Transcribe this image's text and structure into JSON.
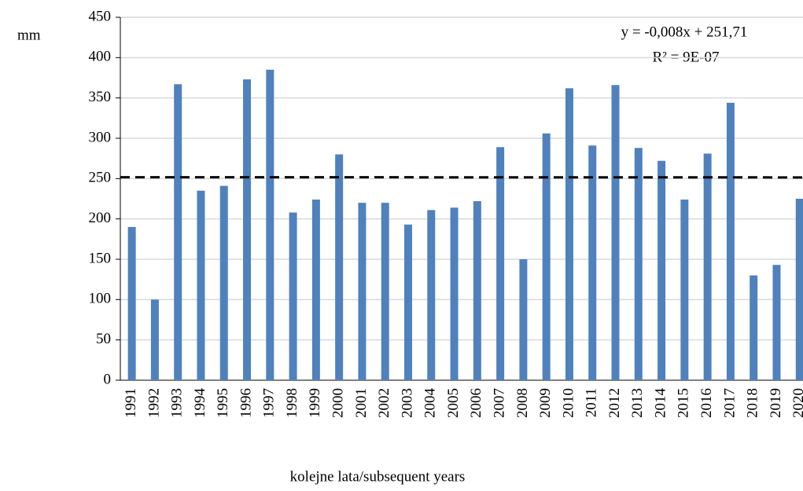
{
  "chart_data": {
    "type": "bar",
    "y_label": "mm",
    "x_label": "kolejne lata/subsequent years",
    "annotations": [
      "y = -0,008x + 251,71",
      "R² = 9E-07"
    ],
    "categories": [
      "1991",
      "1992",
      "1993",
      "1994",
      "1995",
      "1996",
      "1997",
      "1998",
      "1999",
      "2000",
      "2001",
      "2002",
      "2003",
      "2004",
      "2005",
      "2006",
      "2007",
      "2008",
      "2009",
      "2010",
      "2011",
      "2012",
      "2013",
      "2014",
      "2015",
      "2016",
      "2017",
      "2018",
      "2019",
      "2020"
    ],
    "values": [
      190,
      100,
      367,
      235,
      241,
      373,
      385,
      208,
      224,
      280,
      220,
      220,
      193,
      211,
      214,
      222,
      289,
      150,
      306,
      362,
      291,
      366,
      288,
      272,
      224,
      281,
      344,
      130,
      143,
      225
    ],
    "color": "#4f81bd",
    "trendline": {
      "slope": -0.008,
      "intercept": 251.71,
      "color": "#000000",
      "dashed": true
    },
    "ylim": [
      0,
      450
    ],
    "yticks": [
      0,
      50,
      100,
      150,
      200,
      250,
      300,
      350,
      400,
      450
    ],
    "grid": true
  }
}
